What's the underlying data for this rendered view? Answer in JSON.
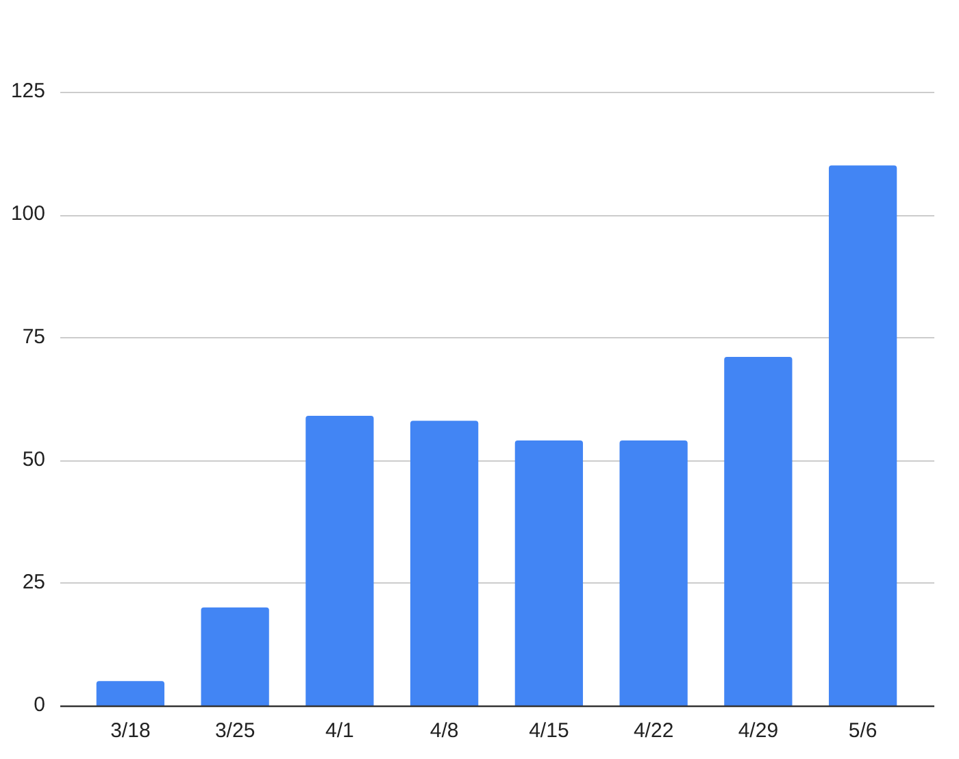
{
  "chart_data": {
    "type": "bar",
    "categories": [
      "3/18",
      "3/25",
      "4/1",
      "4/8",
      "4/15",
      "4/22",
      "4/29",
      "5/6"
    ],
    "values": [
      5,
      20,
      59,
      58,
      54,
      54,
      71,
      110
    ],
    "color": "#4285f4",
    "ylim": [
      0,
      125
    ],
    "yticks": [
      0,
      25,
      50,
      75,
      100,
      125
    ],
    "grid": "y"
  }
}
